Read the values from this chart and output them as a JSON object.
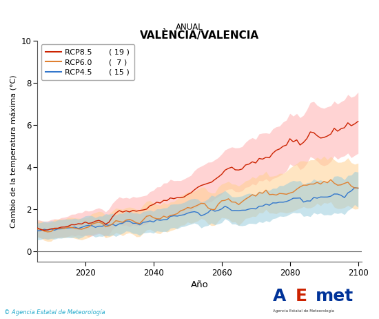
{
  "title": "VALÈNCIA/VALENCIA",
  "subtitle": "ANUAL",
  "xlabel": "Año",
  "ylabel": "Cambio de la temperatura máxima (°C)",
  "xlim": [
    2006,
    2101
  ],
  "ylim": [
    -0.5,
    10
  ],
  "yticks": [
    0,
    2,
    4,
    6,
    8,
    10
  ],
  "xticks": [
    2020,
    2040,
    2060,
    2080,
    2100
  ],
  "series": [
    {
      "label": "RCP8.5",
      "count": "( 19 )",
      "color": "#cc2200",
      "shade_color": "#ffb0b0",
      "shade_alpha": 0.55
    },
    {
      "label": "RCP6.0",
      "count": "(  7 )",
      "color": "#e08030",
      "shade_color": "#ffd090",
      "shade_alpha": 0.55
    },
    {
      "label": "RCP4.5",
      "count": "( 15 )",
      "color": "#3377cc",
      "shade_color": "#99ccdd",
      "shade_alpha": 0.55
    }
  ],
  "background_color": "#ffffff",
  "plot_bg_color": "#ffffff",
  "zero_line_color": "#666666",
  "copyright_text": "© Agencia Estatal de Meteorología",
  "copyright_color": "#22aacc"
}
